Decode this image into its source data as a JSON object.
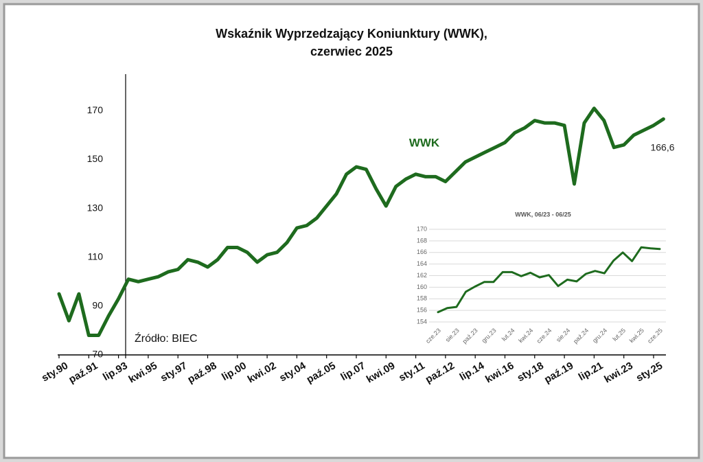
{
  "chart_data": [
    {
      "type": "line",
      "title": [
        "Wskaźnik Wyprzedzający Koniunktury (WWK),",
        "czerwiec 2025"
      ],
      "categories": [
        "sty.90",
        null,
        null,
        "paź.91",
        null,
        null,
        "lip.93",
        null,
        null,
        "kwi.95",
        null,
        null,
        "sty.97",
        null,
        null,
        "paź.98",
        null,
        null,
        "lip.00",
        null,
        null,
        "kwi.02",
        null,
        null,
        "sty.04",
        null,
        null,
        "paź.05",
        null,
        null,
        "lip.07",
        null,
        null,
        "kwi.09",
        null,
        null,
        "sty.11",
        null,
        null,
        "paź.12",
        null,
        null,
        "lip.14",
        null,
        null,
        "kwi.16",
        null,
        null,
        "sty.18",
        null,
        null,
        "paź.19",
        null,
        null,
        "lip.21",
        null,
        null,
        "kwi.23",
        null,
        null,
        "sty.25",
        null
      ],
      "series": [
        {
          "name": "WWK",
          "color": "#1e6b1e",
          "values": [
            95,
            84,
            95,
            78,
            78,
            86,
            93,
            101,
            100,
            101,
            102,
            104,
            105,
            109,
            108,
            106,
            109,
            114,
            114,
            112,
            108,
            111,
            112,
            116,
            122,
            123,
            126,
            131,
            136,
            144,
            147,
            146,
            138,
            131,
            139,
            142,
            144,
            143,
            143,
            141,
            145,
            149,
            151,
            153,
            155,
            157,
            161,
            163,
            166,
            165,
            165,
            164,
            140,
            165,
            171,
            166,
            155,
            156,
            160,
            162,
            164,
            166.6
          ]
        }
      ],
      "ylim": [
        70,
        185
      ],
      "yticks": [
        70,
        90,
        110,
        130,
        150,
        170
      ],
      "annotations": [
        "166,6",
        "Źródło: BIEC"
      ],
      "grid": false
    },
    {
      "type": "line",
      "title": "WWK, 06/23 - 06/25",
      "categories": [
        "cze.23",
        null,
        "sie.23",
        null,
        "paź.23",
        null,
        "gru.23",
        null,
        "lut.24",
        null,
        "kwi.24",
        null,
        "cze.24",
        null,
        "sie.24",
        null,
        "paź.24",
        null,
        "gru.24",
        null,
        "lut.25",
        null,
        "kwi.25",
        null,
        "cze.25"
      ],
      "series": [
        {
          "name": "WWK",
          "color": "#1e6b1e",
          "values": [
            155.7,
            156.4,
            156.6,
            159.2,
            160.1,
            160.9,
            160.9,
            162.6,
            162.6,
            161.9,
            162.5,
            161.7,
            162.1,
            160.2,
            161.3,
            161.0,
            162.3,
            162.8,
            162.4,
            164.6,
            166.0,
            164.5,
            166.9,
            166.7,
            166.6
          ]
        }
      ],
      "ylim": [
        154,
        170
      ],
      "yticks": [
        154,
        156,
        158,
        160,
        162,
        164,
        166,
        168,
        170
      ],
      "grid": true
    }
  ]
}
